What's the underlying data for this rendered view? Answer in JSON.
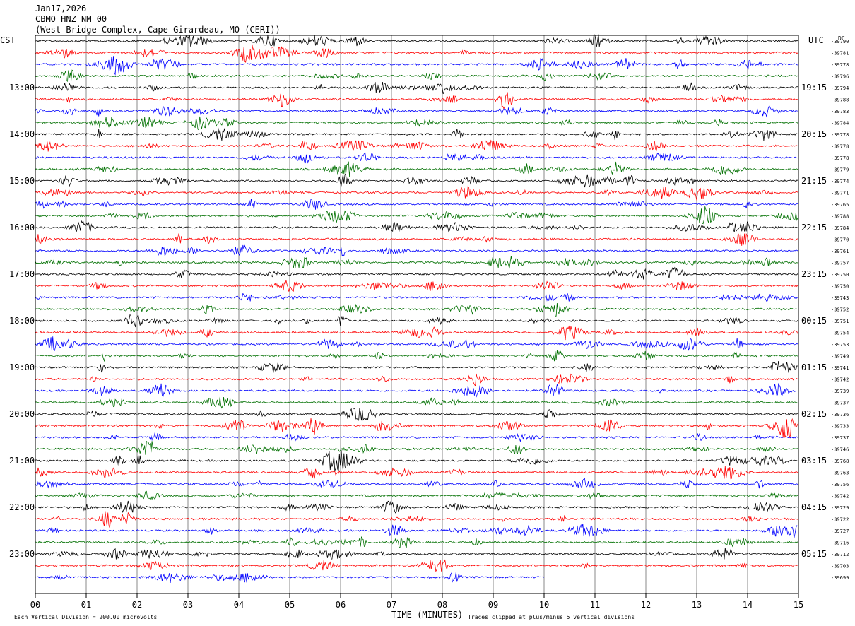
{
  "header": {
    "date": "Jan17,2026",
    "station": "CBMO HNZ NM 00",
    "location": "(West Bridge Complex, Cape Girardeau, MO (CERI))"
  },
  "chart_data": {
    "type": "line",
    "title": "",
    "xlabel": "TIME (MINUTES)",
    "left_axis_label": "CST",
    "right_axis_label": "UTC",
    "right_top_label": "DC",
    "xlim": [
      0,
      15
    ],
    "x_ticks": [
      "00",
      "01",
      "02",
      "03",
      "04",
      "05",
      "06",
      "07",
      "08",
      "09",
      "10",
      "11",
      "12",
      "13",
      "14",
      "15"
    ],
    "trace_colors": [
      "#000000",
      "#ff0000",
      "#0000ff",
      "#007000"
    ],
    "left_hour_labels": [
      "13:00",
      "14:00",
      "15:00",
      "16:00",
      "17:00",
      "18:00",
      "19:00",
      "20:00",
      "21:00",
      "22:00",
      "23:00"
    ],
    "right_hour_labels": [
      "19:15",
      "20:15",
      "21:15",
      "22:15",
      "23:15",
      "00:15",
      "01:15",
      "02:15",
      "03:15",
      "04:15",
      "05:15"
    ],
    "dc_offsets": [
      "-39790",
      "-39781",
      "-39778",
      "-39796",
      "-39794",
      "-39788",
      "-39783",
      "-39784",
      "-39778",
      "-39778",
      "-39778",
      "-39779",
      "-39774",
      "-39771",
      "-39765",
      "-39788",
      "-39784",
      "-39770",
      "-39761",
      "-39757",
      "-39750",
      "-39750",
      "-39743",
      "-39752",
      "-39751",
      "-39754",
      "-39753",
      "-39749",
      "-39741",
      "-39742",
      "-39739",
      "-39737",
      "-39736",
      "-39733",
      "-39737",
      "-39746",
      "-39768",
      "-39763",
      "-39756",
      "-39742",
      "-39729",
      "-39722",
      "-39727",
      "-39716",
      "-39712",
      "-39703",
      "-39699"
    ],
    "trace_count": 47,
    "last_trace_end_minute": 10,
    "footer_left": "Each Vertical Division =  200.00 microvolts",
    "footer_right": "Traces clipped at plus/minus 5 vertical divisions"
  }
}
